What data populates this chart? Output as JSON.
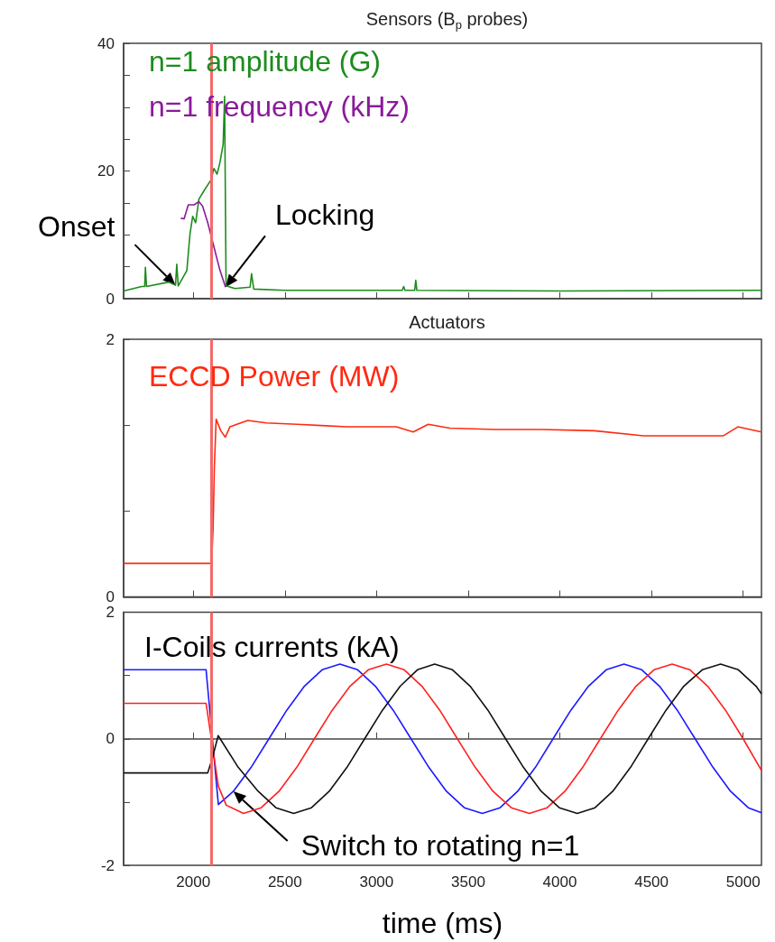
{
  "chart_data": [
    {
      "type": "line",
      "title": "Sensors (B$_{p}$ probes)",
      "xlim": [
        1620,
        5100
      ],
      "xticks": [
        {
          "value": 2000,
          "label": null
        },
        {
          "value": 2500,
          "label": null
        },
        {
          "value": 3000,
          "label": null
        },
        {
          "value": 3500,
          "label": null
        },
        {
          "value": 4000,
          "label": null
        },
        {
          "value": 4500,
          "label": null
        },
        {
          "value": 5000,
          "label": null
        }
      ],
      "ylim": [
        0,
        40
      ],
      "yticks": [
        0,
        {
          "value": 5,
          "label": null
        },
        {
          "value": 10,
          "label": null
        },
        {
          "value": 15,
          "label": null
        },
        20,
        {
          "value": 25,
          "label": null
        },
        {
          "value": 30,
          "label": null
        },
        {
          "value": 35,
          "label": null
        },
        40
      ],
      "tick_labels": "y",
      "series": [
        {
          "name": "n=1 amplitude (G)",
          "color": "#1e8c1e",
          "x": [
            1620,
            1719,
            1735,
            1739,
            1745,
            1867,
            1903,
            1910,
            1918,
            1965,
            1982,
            1997,
            2013,
            2031,
            2063,
            2097,
            2113,
            2130,
            2146,
            2163,
            2171,
            2179,
            2228,
            2310,
            2318,
            2330,
            2500,
            3140,
            3148,
            3155,
            3208,
            3214,
            3220,
            4000,
            5100
          ],
          "values": [
            1.2,
            1.9,
            1.9,
            4.9,
            1.9,
            2.6,
            2.1,
            5.4,
            2.0,
            4.4,
            10.1,
            12.9,
            11.9,
            15.6,
            17.1,
            18.6,
            20.4,
            19.5,
            21.4,
            24.2,
            31.7,
            2.0,
            1.6,
            1.8,
            3.9,
            1.5,
            1.3,
            1.3,
            1.9,
            1.3,
            1.3,
            2.9,
            1.3,
            1.2,
            1.3
          ]
        },
        {
          "name": "n=1 frequency (kHz)",
          "color": "#8b1a9b",
          "x": [
            1932,
            1950,
            1973,
            2005,
            2031,
            2051,
            2079,
            2113,
            2146,
            2176
          ],
          "values": [
            12.6,
            12.5,
            14.7,
            14.7,
            15.2,
            14.5,
            11.9,
            8.1,
            4.4,
            1.8
          ]
        }
      ],
      "ref_lines": [
        {
          "axis": "x",
          "value": 2100,
          "color": "#f36a6a"
        }
      ],
      "annotations": [
        {
          "text": "Onset",
          "x": 1903,
          "y": 2.1
        },
        {
          "text": "Locking",
          "x": 2176,
          "y": 1.8
        }
      ]
    },
    {
      "type": "line",
      "title": "Actuators",
      "xlim": [
        1620,
        5100
      ],
      "xticks": [
        {
          "value": 2000,
          "label": null
        },
        {
          "value": 2500,
          "label": null
        },
        {
          "value": 3000,
          "label": null
        },
        {
          "value": 3500,
          "label": null
        },
        {
          "value": 4000,
          "label": null
        },
        {
          "value": 4500,
          "label": null
        },
        {
          "value": 5000,
          "label": null
        }
      ],
      "ylim": [
        0,
        2
      ],
      "yticks": [
        0,
        {
          "value": 0.67,
          "label": null
        },
        {
          "value": 1.33,
          "label": null
        },
        2
      ],
      "tick_labels": "y",
      "series": [
        {
          "name": "ECCD Power (MW)",
          "color": "#ff2a10",
          "x": [
            1620,
            2000,
            2100,
            2108,
            2115,
            2125,
            2150,
            2175,
            2200,
            2297,
            2400,
            2567,
            2700,
            2838,
            3108,
            3200,
            3282,
            3400,
            3648,
            3900,
            4188,
            4457,
            4674,
            4891,
            4971,
            5100
          ],
          "values": [
            0.26,
            0.26,
            0.26,
            0.52,
            1.0,
            1.38,
            1.29,
            1.24,
            1.32,
            1.37,
            1.35,
            1.34,
            1.33,
            1.32,
            1.32,
            1.28,
            1.34,
            1.31,
            1.3,
            1.3,
            1.29,
            1.25,
            1.25,
            1.25,
            1.32,
            1.28
          ]
        }
      ],
      "ref_lines": [
        {
          "axis": "x",
          "value": 2100,
          "color": "#f36a6a"
        }
      ]
    },
    {
      "type": "line",
      "xlabel": "time (ms)",
      "xlim": [
        1620,
        5100
      ],
      "xticks": [
        2000,
        2500,
        3000,
        3500,
        4000,
        4500,
        5000
      ],
      "ylim": [
        -2,
        2
      ],
      "yticks": [
        -2,
        {
          "value": -1,
          "label": null
        },
        0,
        {
          "value": 1,
          "label": null
        },
        2
      ],
      "series": [
        {
          "color": "#1a1aff",
          "x": [
            1620,
            2070,
            2137,
            2219,
            2316,
            2413,
            2510,
            2606,
            2703,
            2800,
            2897,
            2994,
            3091,
            3188,
            3285,
            3381,
            3479,
            3577,
            3674,
            3770,
            3867,
            3963,
            4060,
            4156,
            4253,
            4350,
            4447,
            4544,
            4641,
            4738,
            4835,
            4931,
            5028,
            5100
          ],
          "values": [
            1.09,
            1.09,
            -1.04,
            -0.83,
            -0.45,
            0,
            0.45,
            0.83,
            1.09,
            1.18,
            1.09,
            0.83,
            0.45,
            0,
            -0.45,
            -0.83,
            -1.09,
            -1.18,
            -1.09,
            -0.83,
            -0.45,
            0,
            0.45,
            0.83,
            1.09,
            1.18,
            1.09,
            0.83,
            0.45,
            0,
            -0.45,
            -0.83,
            -1.09,
            -1.17
          ]
        },
        {
          "color": "#ff2020",
          "x": [
            1620,
            2070,
            2137,
            2180,
            2274,
            2371,
            2468,
            2565,
            2661,
            2758,
            2855,
            2955,
            3054,
            3151,
            3248,
            3345,
            3441,
            3538,
            3635,
            3735,
            3834,
            3931,
            4028,
            4125,
            4221,
            4318,
            4415,
            4514,
            4613,
            4710,
            4807,
            4904,
            5000,
            5100
          ],
          "values": [
            0.56,
            0.56,
            -0.75,
            -1.05,
            -1.18,
            -1.09,
            -0.83,
            -0.45,
            0,
            0.45,
            0.83,
            1.09,
            1.18,
            1.09,
            0.83,
            0.45,
            0,
            -0.45,
            -0.83,
            -1.09,
            -1.18,
            -1.09,
            -0.83,
            -0.45,
            0,
            0.45,
            0.83,
            1.09,
            1.18,
            1.09,
            0.83,
            0.45,
            0,
            -0.5
          ]
        },
        {
          "color": "#111111",
          "x": [
            1620,
            2079,
            2105,
            2136,
            2245,
            2354,
            2451,
            2548,
            2645,
            2742,
            2839,
            2935,
            3032,
            3129,
            3223,
            3317,
            3414,
            3511,
            3608,
            3704,
            3801,
            3898,
            3997,
            4095,
            4192,
            4289,
            4386,
            4482,
            4579,
            4676,
            4777,
            4877,
            4974,
            5071,
            5100
          ],
          "values": [
            -0.54,
            -0.54,
            -0.3,
            0.05,
            -0.45,
            -0.83,
            -1.09,
            -1.18,
            -1.09,
            -0.83,
            -0.45,
            0,
            0.45,
            0.83,
            1.09,
            1.18,
            1.09,
            0.83,
            0.45,
            0,
            -0.45,
            -0.83,
            -1.09,
            -1.18,
            -1.09,
            -0.83,
            -0.45,
            0,
            0.45,
            0.83,
            1.09,
            1.18,
            1.09,
            0.83,
            0.71
          ]
        }
      ],
      "ref_lines": [
        {
          "axis": "x",
          "value": 2100,
          "color": "#f36a6a"
        }
      ],
      "annotations": [
        "I-Coils currents (kA)",
        {
          "text": "Switch to rotating n=1",
          "x": 2219,
          "y": -0.83
        }
      ]
    }
  ]
}
